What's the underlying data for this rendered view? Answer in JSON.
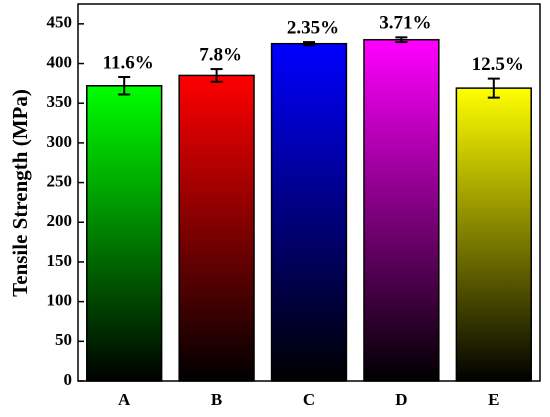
{
  "chart_data": {
    "type": "bar",
    "y_label": "Tensile Strength (MPa)",
    "categories": [
      "A",
      "B",
      "C",
      "D",
      "E"
    ],
    "values": [
      372,
      385,
      425,
      430,
      369
    ],
    "errors": [
      11,
      8,
      2,
      3,
      12
    ],
    "annotations": [
      "11.6%",
      "7.8%",
      "2.35%",
      "3.71%",
      "12.5%"
    ],
    "colors": [
      "#00ff00",
      "#ff0000",
      "#0000ff",
      "#ff00ff",
      "#ffff00"
    ],
    "ylim": [
      0,
      475
    ],
    "yticks": [
      0,
      50,
      100,
      150,
      200,
      250,
      300,
      350,
      400,
      450
    ],
    "grid": false
  }
}
